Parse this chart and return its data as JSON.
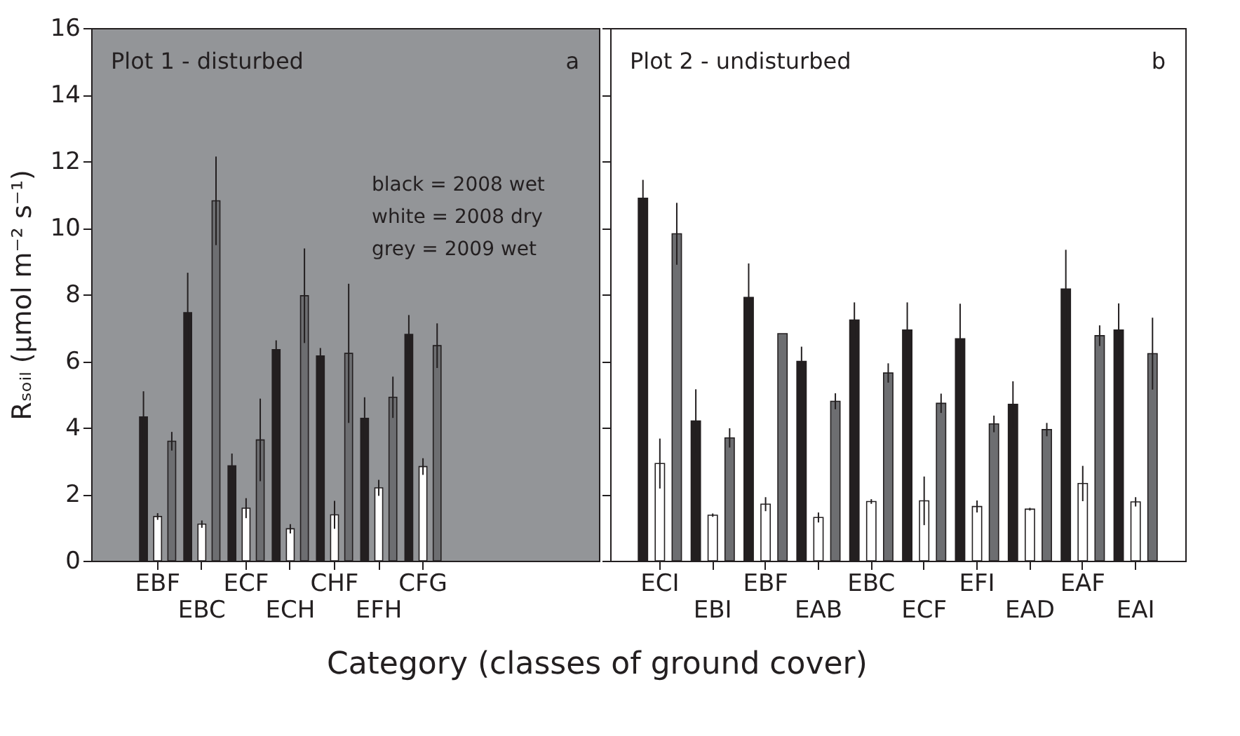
{
  "chart_data": [
    {
      "type": "bar",
      "categories": [
        "EBF",
        "EBC",
        "ECF",
        "ECH",
        "CHF",
        "EFH",
        "CFG"
      ],
      "ylabel": "Rₛₒᵢₗ (µmol m⁻² s⁻¹)",
      "xlabel": "Category (classes of ground cover)",
      "ylim": [
        0,
        16
      ],
      "yticks": [
        0,
        2,
        4,
        6,
        8,
        10,
        12,
        14,
        16
      ],
      "grid": false,
      "legend": false,
      "annotations": [
        "Plot 1 - disturbed",
        "a",
        "black = 2008 wet",
        "white = 2008 dry",
        "grey = 2009 wet"
      ],
      "series": [
        {
          "color": "#231f20",
          "values": [
            4.32,
            7.45,
            2.85,
            6.34,
            6.15,
            4.28,
            6.8
          ],
          "errors": [
            0.77,
            1.2,
            0.37,
            0.28,
            0.24,
            0.63,
            0.58
          ]
        },
        {
          "color": "#ffffff",
          "values": [
            1.33,
            1.1,
            1.58,
            0.96,
            1.38,
            2.19,
            2.83
          ],
          "errors": [
            0.1,
            0.11,
            0.3,
            0.14,
            0.42,
            0.24,
            0.25
          ]
        },
        {
          "color": "#6d6e71",
          "values": [
            3.59,
            10.81,
            3.63,
            7.96,
            6.23,
            4.91,
            6.46
          ],
          "errors": [
            0.28,
            1.33,
            1.24,
            1.42,
            2.09,
            0.62,
            0.67
          ]
        }
      ]
    },
    {
      "type": "bar",
      "categories": [
        "ECI",
        "EBI",
        "EBF",
        "EAB",
        "EBC",
        "ECF",
        "EFI",
        "EAD",
        "EAF",
        "EAI"
      ],
      "ylim": [
        0,
        16
      ],
      "yticks": [
        0,
        2,
        4,
        6,
        8,
        10,
        12,
        14,
        16
      ],
      "tick_labels": "x",
      "grid": false,
      "legend": false,
      "annotations": [
        "Plot 2 - undisturbed",
        "b"
      ],
      "series": [
        {
          "color": "#231f20",
          "values": [
            10.89,
            4.2,
            7.91,
            5.99,
            7.23,
            6.93,
            6.67,
            4.7,
            8.16,
            6.93
          ],
          "errors": [
            0.55,
            0.95,
            1.02,
            0.44,
            0.53,
            0.83,
            1.05,
            0.69,
            1.18,
            0.8
          ]
        },
        {
          "color": "#ffffff",
          "values": [
            2.92,
            1.37,
            1.7,
            1.3,
            1.78,
            1.8,
            1.63,
            1.55,
            2.32,
            1.77
          ],
          "errors": [
            0.75,
            0.05,
            0.21,
            0.15,
            0.07,
            0.73,
            0.18,
            0.04,
            0.53,
            0.14
          ]
        },
        {
          "color": "#6d6e71",
          "values": [
            9.82,
            3.69,
            6.82,
            4.79,
            5.64,
            4.73,
            4.11,
            3.94,
            6.76,
            6.22
          ],
          "errors": [
            0.93,
            0.29,
            null,
            0.24,
            0.29,
            0.29,
            0.25,
            0.2,
            0.31,
            1.08
          ]
        }
      ]
    }
  ]
}
